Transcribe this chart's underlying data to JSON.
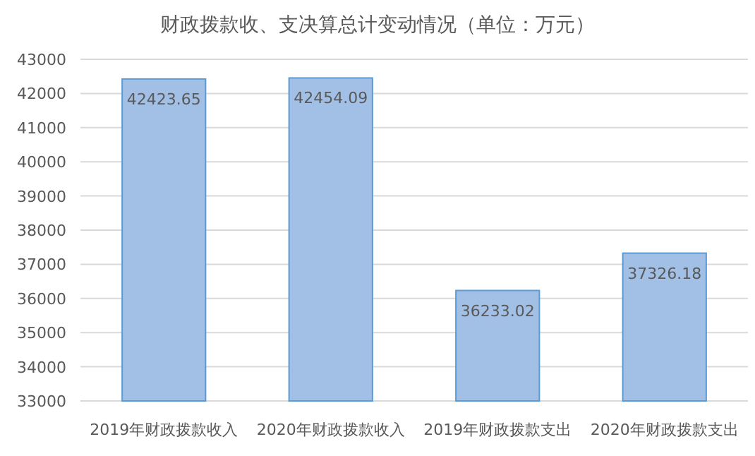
{
  "chart_data": {
    "type": "bar",
    "title": "财政拨款收、支决算总计变动情况（单位：万元）",
    "categories": [
      "2019年财政拨款收入",
      "2020年财政拨款收入",
      "2019年财政拨款支出",
      "2020年财政拨款支出"
    ],
    "values": [
      42423.65,
      42454.09,
      36233.02,
      37326.18
    ],
    "color": "#a2c0e6",
    "ylim": [
      33000,
      43000
    ],
    "yticks": [
      33000,
      34000,
      35000,
      36000,
      37000,
      38000,
      39000,
      40000,
      41000,
      42000,
      43000
    ],
    "grid": "y",
    "data_labels": true
  }
}
